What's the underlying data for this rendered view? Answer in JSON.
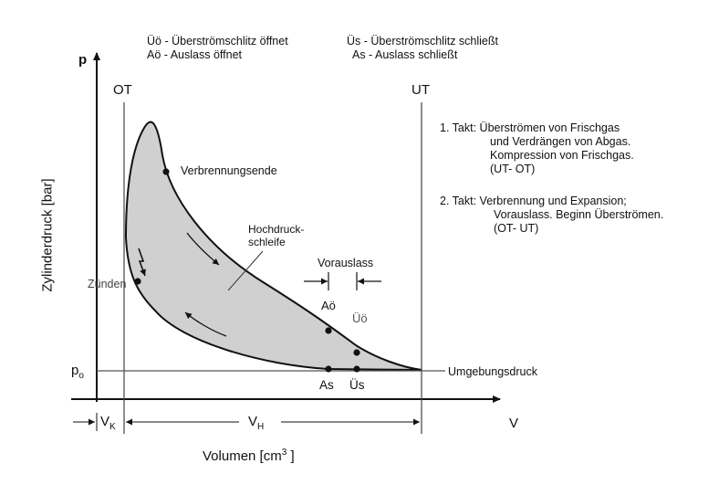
{
  "legend": {
    "uo": "Üö - Überströmschlitz öffnet",
    "ao": "Aö - Auslass öffnet",
    "us": "Üs - Überströmschlitz schließt",
    "as": "As - Auslass schließt"
  },
  "axes": {
    "p_label": "p",
    "y_title": "Zylinderdruck [bar]",
    "x_title_main": "Volumen [cm",
    "x_title_sup": "3",
    "x_title_end": " ]",
    "v_label": "V",
    "p0_main": "p",
    "p0_sub": "o"
  },
  "markers": {
    "ot": "OT",
    "ut": "UT",
    "vk_main": "V",
    "vk_sub": "K",
    "vh_main": "V",
    "vh_sub": "H"
  },
  "points": {
    "verbrennungsende": "Verbrennungsende",
    "hochdruck_1": "Hochdruck-",
    "hochdruck_2": "schleife",
    "vorauslass": "Vorauslass",
    "ao": "Aö",
    "uo": "Üö",
    "zuenden": "Zünden",
    "as": "As",
    "us": "Üs",
    "umgebungsdruck": "Umgebungsdruck"
  },
  "takt": {
    "t1": [
      "1. Takt: Überströmen von Frischgas",
      "und Verdrängen von Abgas.",
      "Kompression von Frischgas.",
      "(UT- OT)"
    ],
    "t2": [
      "2. Takt:  Verbrennung und Expansion;",
      "Vorauslass. Beginn Überströmen.",
      "(OT- UT)"
    ]
  }
}
